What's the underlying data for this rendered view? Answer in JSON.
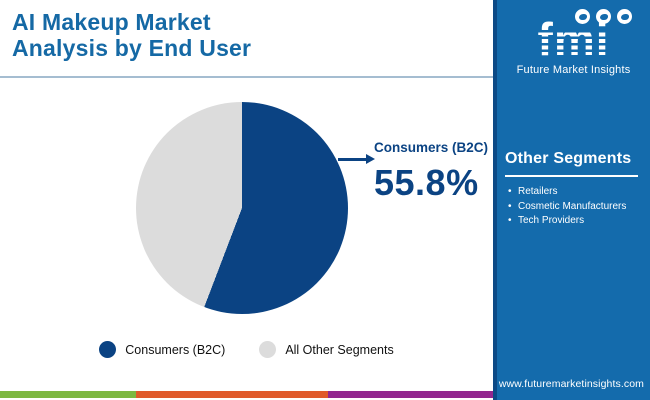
{
  "header": {
    "title_line1": "AI Makeup Market",
    "title_line2": "Analysis by End User"
  },
  "chart_data": {
    "type": "pie",
    "title": "AI Makeup Market Analysis by End User",
    "slices": [
      {
        "label": "Consumers (B2C)",
        "value": 55.8,
        "color": "#0B4383"
      },
      {
        "label": "All Other Segments",
        "value": 44.2,
        "color": "#DCDCDC"
      }
    ],
    "annotation": {
      "label": "Consumers (B2C)",
      "value_text": "55.8%"
    },
    "legend_position": "bottom",
    "start_angle_deg": 0,
    "direction": "clockwise"
  },
  "sidebar": {
    "logo": {
      "brand": "fmi",
      "subtitle": "Future Market Insights",
      "icons": [
        "map-icon",
        "landmark-icon",
        "globe-icon"
      ]
    },
    "other_segments": {
      "heading": "Other Segments",
      "items": [
        "Retailers",
        "Cosmetic Manufacturers",
        "Tech Providers"
      ]
    },
    "website": "www.futuremarketinsights.com"
  },
  "colors": {
    "title_blue": "#1569A5",
    "pie_primary": "#0B4383",
    "pie_secondary": "#DCDCDC",
    "sidebar_blue": "#146BAC",
    "sidebar_edge": "#0C4A86",
    "divider": "#A5BDD1",
    "footer_stripes": [
      "#7DB842",
      "#E05A2B",
      "#92278F"
    ]
  }
}
